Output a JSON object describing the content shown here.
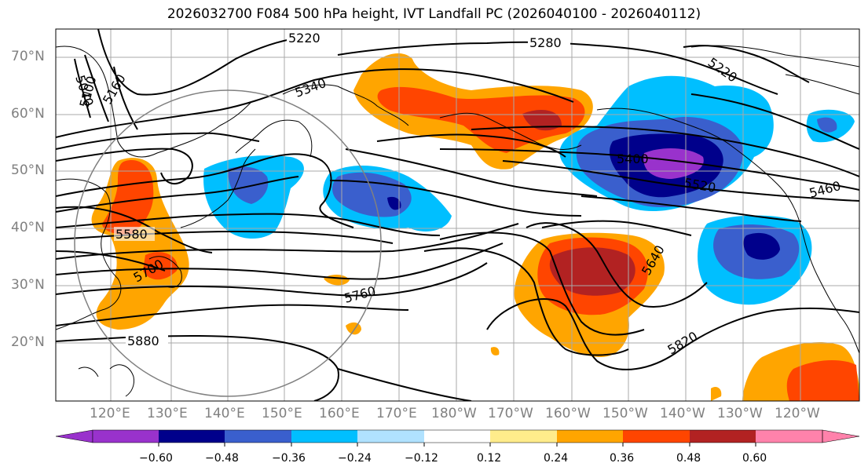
{
  "title": "2026032700 F084 500 hPa height, IVT Landfall PC (2026040100 - 2026040112)",
  "lat_labels": [
    "70°N",
    "60°N",
    "50°N",
    "40°N",
    "30°N",
    "20°N"
  ],
  "lon_labels": [
    "120°E",
    "130°E",
    "140°E",
    "150°E",
    "160°E",
    "170°E",
    "180°W",
    "170°W",
    "160°W",
    "150°W",
    "140°W",
    "130°W",
    "120°W"
  ],
  "contour_labels": [
    "5220",
    "5280",
    "5040",
    "5100",
    "5160",
    "5340",
    "5220",
    "5400",
    "5520",
    "5460",
    "5580",
    "5700",
    "5760",
    "5640",
    "5880",
    "5820"
  ],
  "colorbar": {
    "colors": [
      "#9932cc",
      "#00008b",
      "#3a5fcd",
      "#00bfff",
      "#b0e2ff",
      "#ffffff",
      "#ffec8b",
      "#ffa500",
      "#ff4500",
      "#b22222",
      "#ff82ab"
    ],
    "tick_labels": [
      "−0.60",
      "−0.48",
      "−0.36",
      "−0.24",
      "−0.12",
      "0.12",
      "0.24",
      "0.36",
      "0.48",
      "0.60"
    ]
  }
}
